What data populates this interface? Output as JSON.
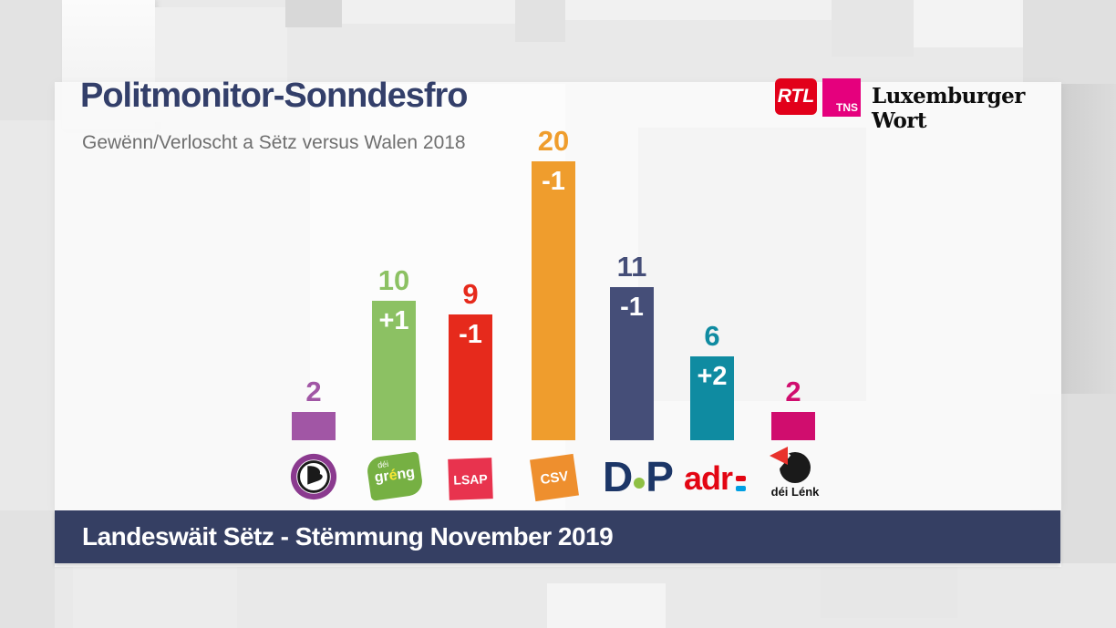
{
  "header": {
    "title": "Politmonitor-Sonndesfro",
    "subtitle": "Gewënn/Verloscht a Sëtz versus Walen 2018"
  },
  "branding": {
    "rtl_label": "RTL",
    "tns_label": "TNS",
    "wort_label": "Luxemburger Wort"
  },
  "footer": {
    "label": "Landeswäit Sëtz - Stëmmung November 2019"
  },
  "colors": {
    "title": "#333f6a",
    "subtitle": "#6f6f6f",
    "footer_bg": "#353f63",
    "rtl_bg": "#e2001a",
    "tns_bg": "#e5007d",
    "change_label": "#ffffff"
  },
  "chart_data": {
    "type": "bar",
    "title": "Politmonitor-Sonndesfro",
    "subtitle": "Gewënn/Verloscht a Sëtz versus Walen 2018",
    "caption": "Landeswäit Sëtz - Stëmmung November 2019",
    "categories": [
      "Piratepartei",
      "déi gréng",
      "LSAP",
      "CSV",
      "DP",
      "ADR",
      "déi Lénk"
    ],
    "values": [
      2,
      10,
      9,
      20,
      11,
      6,
      2
    ],
    "changes": [
      "",
      "+1",
      "-1",
      "-1",
      "-1",
      "+2",
      ""
    ],
    "bar_colors": [
      "#a156a5",
      "#8cc163",
      "#e62a1c",
      "#ef9d2d",
      "#454e78",
      "#0f8ba1",
      "#d00d6e"
    ],
    "xlabel": "",
    "ylabel": "",
    "ylim": [
      0,
      22
    ],
    "grid": false,
    "legend": "none",
    "value_labels": "seat totals above each bar in party color, seat change printed white inside bar top"
  },
  "party_logos": {
    "greng": {
      "dei": "déi",
      "gr": "gr",
      "e_accent": "é",
      "ng": "ng"
    },
    "lsap": {
      "label": "LSAP"
    },
    "csv": {
      "label": "CSV"
    },
    "dp": {
      "d": "D",
      "p": "P"
    },
    "adr": {
      "text": "adr"
    },
    "lenk": {
      "label": "déi Lénk"
    }
  }
}
